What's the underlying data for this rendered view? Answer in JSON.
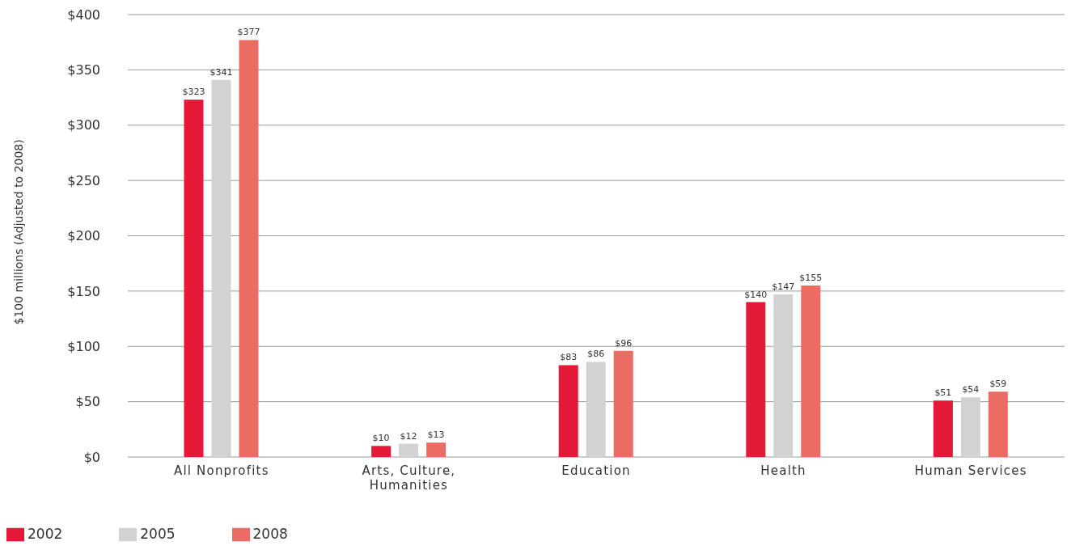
{
  "chart_data": {
    "type": "bar",
    "ylabel": "$100 millions (Adjusted to 2008)",
    "categories": [
      "All Nonprofits",
      "Arts, Culture, Humanities",
      "Education",
      "Health",
      "Human Services"
    ],
    "series": [
      {
        "name": "2002",
        "color": "#e31937",
        "values": [
          323,
          10,
          83,
          140,
          51
        ]
      },
      {
        "name": "2005",
        "color": "#d2d2d2",
        "values": [
          341,
          12,
          86,
          147,
          54
        ]
      },
      {
        "name": "2008",
        "color": "#eb6c62",
        "values": [
          377,
          13,
          96,
          155,
          59
        ]
      }
    ],
    "ylim": [
      0,
      400
    ],
    "yticks": [
      {
        "value": 0,
        "label": "$0"
      },
      {
        "value": 50,
        "label": "$50"
      },
      {
        "value": 100,
        "label": "$100"
      },
      {
        "value": 150,
        "label": "$150"
      },
      {
        "value": 200,
        "label": "$200"
      },
      {
        "value": 250,
        "label": "$250"
      },
      {
        "value": 300,
        "label": "$300"
      },
      {
        "value": 350,
        "label": "$350"
      },
      {
        "value": 400,
        "label": "$400"
      }
    ],
    "value_labels": [
      [
        "$323",
        "$10",
        "$83",
        "$140",
        "$51"
      ],
      [
        "$341",
        "$12",
        "$86",
        "$147",
        "$54"
      ],
      [
        "$377",
        "$13",
        "$96",
        "$155",
        "$59"
      ]
    ],
    "grid": "y",
    "legend": "bottom left"
  }
}
